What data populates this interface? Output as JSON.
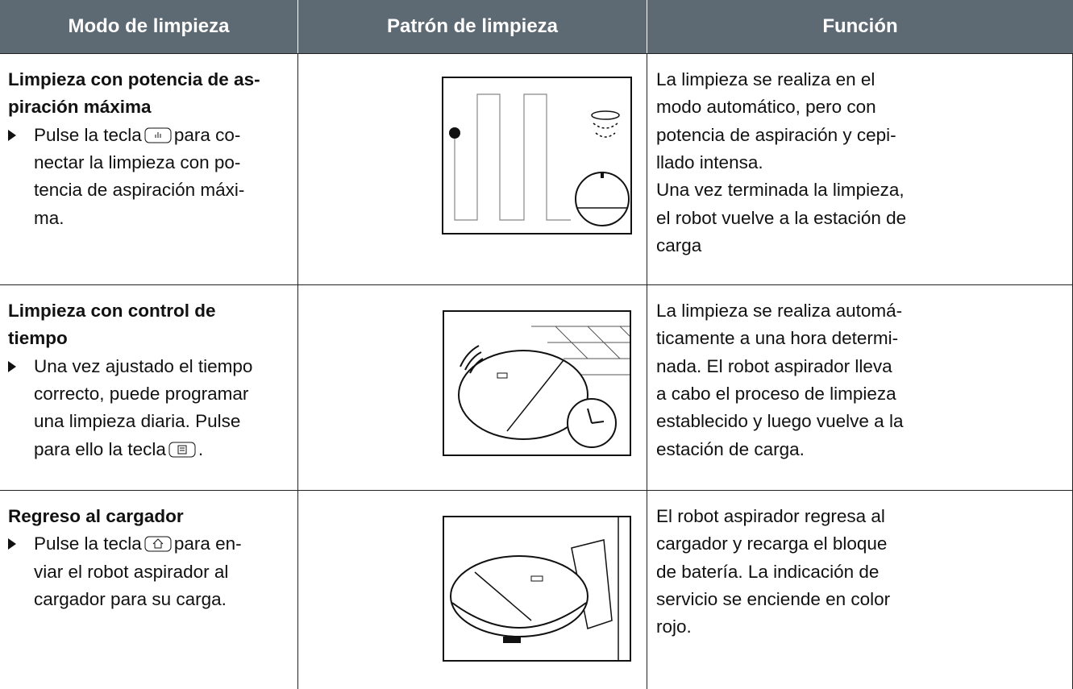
{
  "header": [
    "Modo de limpieza",
    "Patrón de limpieza",
    "Función"
  ],
  "rows": [
    {
      "mode_title": [
        "Limpieza con potencia de as-",
        "piración máxima"
      ],
      "mode_steps": [
        {
          "before": "Pulse la tecla",
          "after": "para co-"
        },
        "nectar la limpieza con po-",
        "tencia de aspiración máxi-",
        "ma."
      ],
      "function": [
        "La limpieza se realiza en el",
        "modo automático, pero con",
        "potencia de aspiración y cepi-",
        "llado intensa.",
        "Una vez terminada la limpieza,",
        "el robot vuelve a la estación de",
        "carga"
      ]
    },
    {
      "mode_title": [
        "Limpieza con control de",
        "tiempo"
      ],
      "mode_steps": [
        "Una vez ajustado el tiempo",
        "correcto, puede programar",
        "una limpieza diaria. Pulse",
        {
          "before": "para ello la tecla",
          "after": "."
        }
      ],
      "function": [
        "La limpieza se realiza automá-",
        "ticamente a una hora determi-",
        "nada. El robot aspirador lleva",
        "a cabo el proceso de limpieza",
        "establecido y luego vuelve a la",
        "estación de carga."
      ]
    },
    {
      "mode_title": [
        "Regreso al cargador"
      ],
      "mode_steps": [
        {
          "before": "Pulse la tecla",
          "after": "para en-"
        },
        "viar el robot aspirador al",
        "cargador para su carga."
      ],
      "function": [
        "El robot aspirador regresa al",
        "cargador y recarga el bloque",
        "de batería. La indicación de",
        "servicio se enciende en color",
        "rojo."
      ]
    }
  ]
}
